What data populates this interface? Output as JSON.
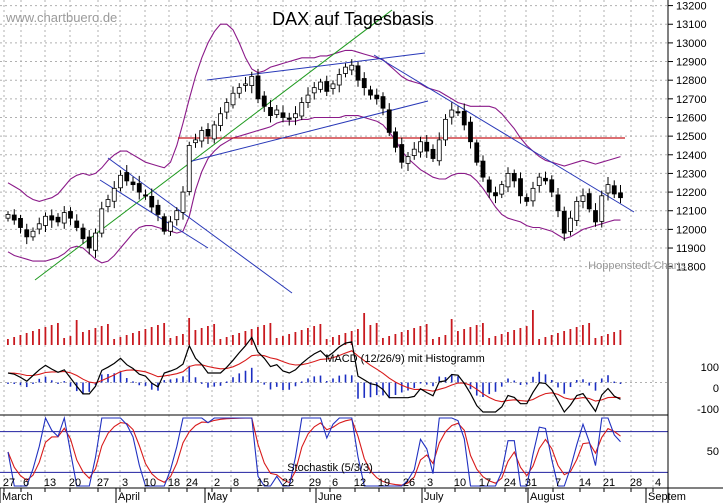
{
  "watermark": "www.chartbuero.de",
  "attribution": "Hoppenstedt Charts",
  "chart_data": [
    {
      "type": "candlestick",
      "title": "DAX auf Tagesbasis",
      "y_ticks": [
        11800,
        11900,
        12000,
        12100,
        12200,
        12300,
        12400,
        12500,
        12600,
        12700,
        12800,
        12900,
        13000,
        13100,
        13200
      ],
      "ylim": [
        11750,
        13230
      ],
      "grid": true,
      "x_day_labels": [
        "27",
        "6",
        "13",
        "20",
        "27",
        "3",
        "10",
        "18",
        "24",
        "2",
        "8",
        "15",
        "22",
        "29",
        "6",
        "12",
        "19",
        "26",
        "3",
        "10",
        "17",
        "24",
        "31",
        "7",
        "14",
        "21",
        "28",
        "4"
      ],
      "x_month_labels": [
        "March",
        "April",
        "May",
        "June",
        "July",
        "August",
        "Septem"
      ],
      "closes": [
        12080,
        12050,
        12010,
        11960,
        11990,
        12030,
        12070,
        12050,
        12040,
        12090,
        12060,
        12010,
        11950,
        11900,
        11980,
        12110,
        12160,
        12220,
        12290,
        12260,
        12240,
        12200,
        12180,
        12120,
        12080,
        11990,
        12040,
        12100,
        12200,
        12450,
        12480,
        12530,
        12500,
        12560,
        12620,
        12680,
        12730,
        12760,
        12780,
        12820,
        12700,
        12660,
        12610,
        12640,
        12600,
        12590,
        12620,
        12680,
        12720,
        12760,
        12790,
        12740,
        12780,
        12830,
        12870,
        12880,
        12800,
        12760,
        12720,
        12700,
        12650,
        12520,
        12440,
        12360,
        12390,
        12430,
        12470,
        12420,
        12380,
        12480,
        12590,
        12640,
        12630,
        12560,
        12470,
        12360,
        12280,
        12200,
        12180,
        12240,
        12300,
        12260,
        12180,
        12150,
        12220,
        12280,
        12260,
        12200,
        12100,
        11980,
        12060,
        12150,
        12180,
        12110,
        12040,
        12180,
        12240,
        12190,
        12170
      ],
      "upper_band": [
        12250,
        12230,
        12210,
        12180,
        12160,
        12150,
        12160,
        12170,
        12190,
        12230,
        12270,
        12290,
        12300,
        12290,
        12300,
        12330,
        12370,
        12400,
        12420,
        12420,
        12400,
        12380,
        12360,
        12350,
        12340,
        12330,
        12360,
        12450,
        12570,
        12700,
        12820,
        12920,
        13000,
        13060,
        13100,
        13100,
        13070,
        13000,
        12920,
        12860,
        12840,
        12850,
        12870,
        12880,
        12890,
        12900,
        12910,
        12920,
        12920,
        12920,
        12930,
        12930,
        12940,
        12950,
        12960,
        12960,
        12950,
        12940,
        12930,
        12920,
        12910,
        12880,
        12850,
        12820,
        12800,
        12790,
        12780,
        12760,
        12750,
        12740,
        12720,
        12700,
        12680,
        12670,
        12660,
        12660,
        12660,
        12660,
        12650,
        12620,
        12580,
        12540,
        12490,
        12450,
        12420,
        12390,
        12370,
        12360,
        12350,
        12340,
        12350,
        12360,
        12370,
        12360,
        12350,
        12360,
        12370,
        12380,
        12390
      ],
      "lower_band": [
        11880,
        11860,
        11850,
        11840,
        11830,
        11830,
        11830,
        11840,
        11850,
        11870,
        11900,
        11910,
        11900,
        11870,
        11840,
        11820,
        11830,
        11860,
        11900,
        11940,
        11980,
        12010,
        12020,
        12020,
        12010,
        12000,
        11990,
        11980,
        11990,
        12070,
        12210,
        12310,
        12380,
        12420,
        12450,
        12470,
        12490,
        12500,
        12510,
        12520,
        12530,
        12540,
        12550,
        12570,
        12580,
        12580,
        12580,
        12590,
        12590,
        12600,
        12600,
        12600,
        12600,
        12600,
        12610,
        12610,
        12610,
        12600,
        12590,
        12580,
        12560,
        12520,
        12480,
        12420,
        12380,
        12350,
        12320,
        12300,
        12280,
        12270,
        12270,
        12290,
        12300,
        12300,
        12290,
        12260,
        12220,
        12170,
        12120,
        12080,
        12060,
        12050,
        12040,
        12020,
        12010,
        12010,
        12000,
        11990,
        11970,
        11950,
        11960,
        11980,
        12000,
        12010,
        12020,
        12030,
        12040,
        12050,
        12050
      ],
      "horizontal_line": 12490
    },
    {
      "type": "line",
      "title": "MACD (12/26/9) mit Histogramm",
      "y_ticks": [
        100,
        0,
        -100
      ],
      "ylim": [
        -155,
        160
      ]
    },
    {
      "type": "line",
      "title": "Stochastik (5/3/3)",
      "y_ticks": [
        50
      ],
      "reference_lines": [
        80,
        20
      ]
    }
  ],
  "colors": {
    "candle_up": "#ffffff",
    "candle_down": "#000000",
    "bollinger": "#8b1a89",
    "trend_blue": "#2838b8",
    "trend_green": "#1f9a1f",
    "resistance": "#c8191f",
    "macd": "#000000",
    "signal": "#d81b1b",
    "histogram": "#1c2ec2",
    "volume": "#c8191f",
    "stoch_k": "#2030c0",
    "stoch_d": "#d81b1b"
  }
}
